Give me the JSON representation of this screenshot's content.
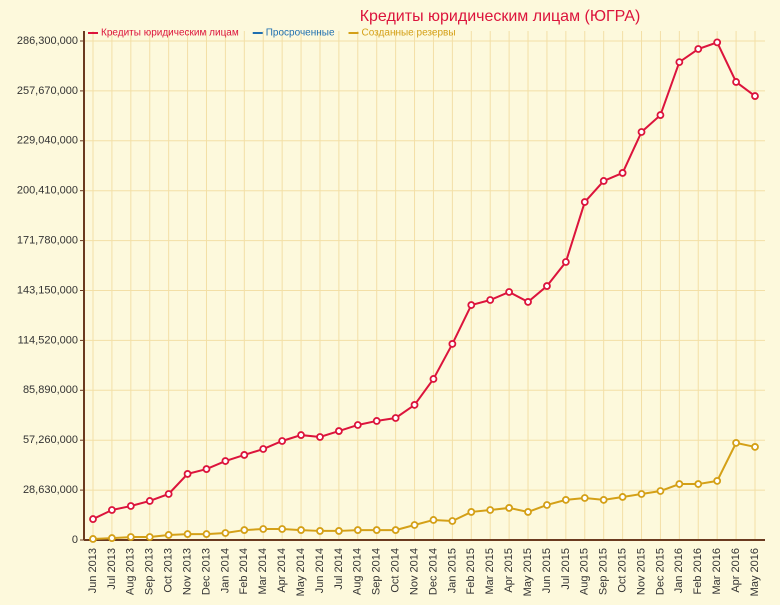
{
  "chart_data": {
    "type": "line",
    "title": "Кредиты юридическим лицам (ЮГРА)",
    "categories": [
      "Jun 2013",
      "Jul 2013",
      "Aug 2013",
      "Sep 2013",
      "Oct 2013",
      "Nov 2013",
      "Dec 2013",
      "Jan 2014",
      "Feb 2014",
      "Mar 2014",
      "Apr 2014",
      "May 2014",
      "Jun 2014",
      "Jul 2014",
      "Aug 2014",
      "Sep 2014",
      "Oct 2014",
      "Nov 2014",
      "Dec 2014",
      "Jan 2015",
      "Feb 2015",
      "Mar 2015",
      "Apr 2015",
      "May 2015",
      "Jun 2015",
      "Jul 2015",
      "Aug 2015",
      "Sep 2015",
      "Oct 2015",
      "Nov 2015",
      "Dec 2015",
      "Jan 2016",
      "Feb 2016",
      "Mar 2016",
      "Apr 2016",
      "May 2016"
    ],
    "series": [
      {
        "name": "Кредиты юридическим лицам",
        "color": "#dc143c",
        "values": [
          12000000,
          17200000,
          19500000,
          22400000,
          26400000,
          37900000,
          40700000,
          45300000,
          48800000,
          52200000,
          56800000,
          60200000,
          59100000,
          62500000,
          66000000,
          68300000,
          70000000,
          77500000,
          92400000,
          112500000,
          134800000,
          137700000,
          142300000,
          136600000,
          145700000,
          159500000,
          193900000,
          206000000,
          210600000,
          234100000,
          243800000,
          274200000,
          281700000,
          285500000,
          262800000,
          254700000
        ]
      },
      {
        "name": "Просроченные",
        "color": "#1f6fb0",
        "values": [
          null,
          null,
          null,
          null,
          null,
          null,
          null,
          null,
          null,
          null,
          null,
          null,
          null,
          null,
          null,
          null,
          null,
          null,
          null,
          null,
          null,
          null,
          null,
          null,
          null,
          null,
          null,
          null,
          null,
          null,
          null,
          null,
          null,
          null,
          null,
          null
        ]
      },
      {
        "name": "Созданные резервы",
        "color": "#d4a017",
        "values": [
          600000,
          1100000,
          1700000,
          1700000,
          2900000,
          3400000,
          3400000,
          4000000,
          5700000,
          6300000,
          6300000,
          5700000,
          5200000,
          5200000,
          5700000,
          5700000,
          5700000,
          8600000,
          11500000,
          10900000,
          16100000,
          17200000,
          18400000,
          16100000,
          20100000,
          23000000,
          24100000,
          23000000,
          24700000,
          26400000,
          28100000,
          32100000,
          32100000,
          33900000,
          55700000,
          53400000
        ]
      }
    ],
    "ylim": [
      0,
      286300000
    ],
    "yticks": [
      0,
      {
        "value": 28630000,
        "label": "28,630,000"
      },
      {
        "value": 57260000,
        "label": "57,260,000"
      },
      {
        "value": 85890000,
        "label": "85,890,000"
      },
      {
        "value": 114520000,
        "label": "114,520,000"
      },
      {
        "value": 143150000,
        "label": "143,150,000"
      },
      {
        "value": 171780000,
        "label": "171,780,000"
      },
      {
        "value": 200410000,
        "label": "200,410,000"
      },
      {
        "value": 229040000,
        "label": "229,040,000"
      },
      {
        "value": 257670000,
        "label": "257,670,000"
      },
      {
        "value": 286300000,
        "label": "286,300,000"
      }
    ],
    "grid": true
  }
}
